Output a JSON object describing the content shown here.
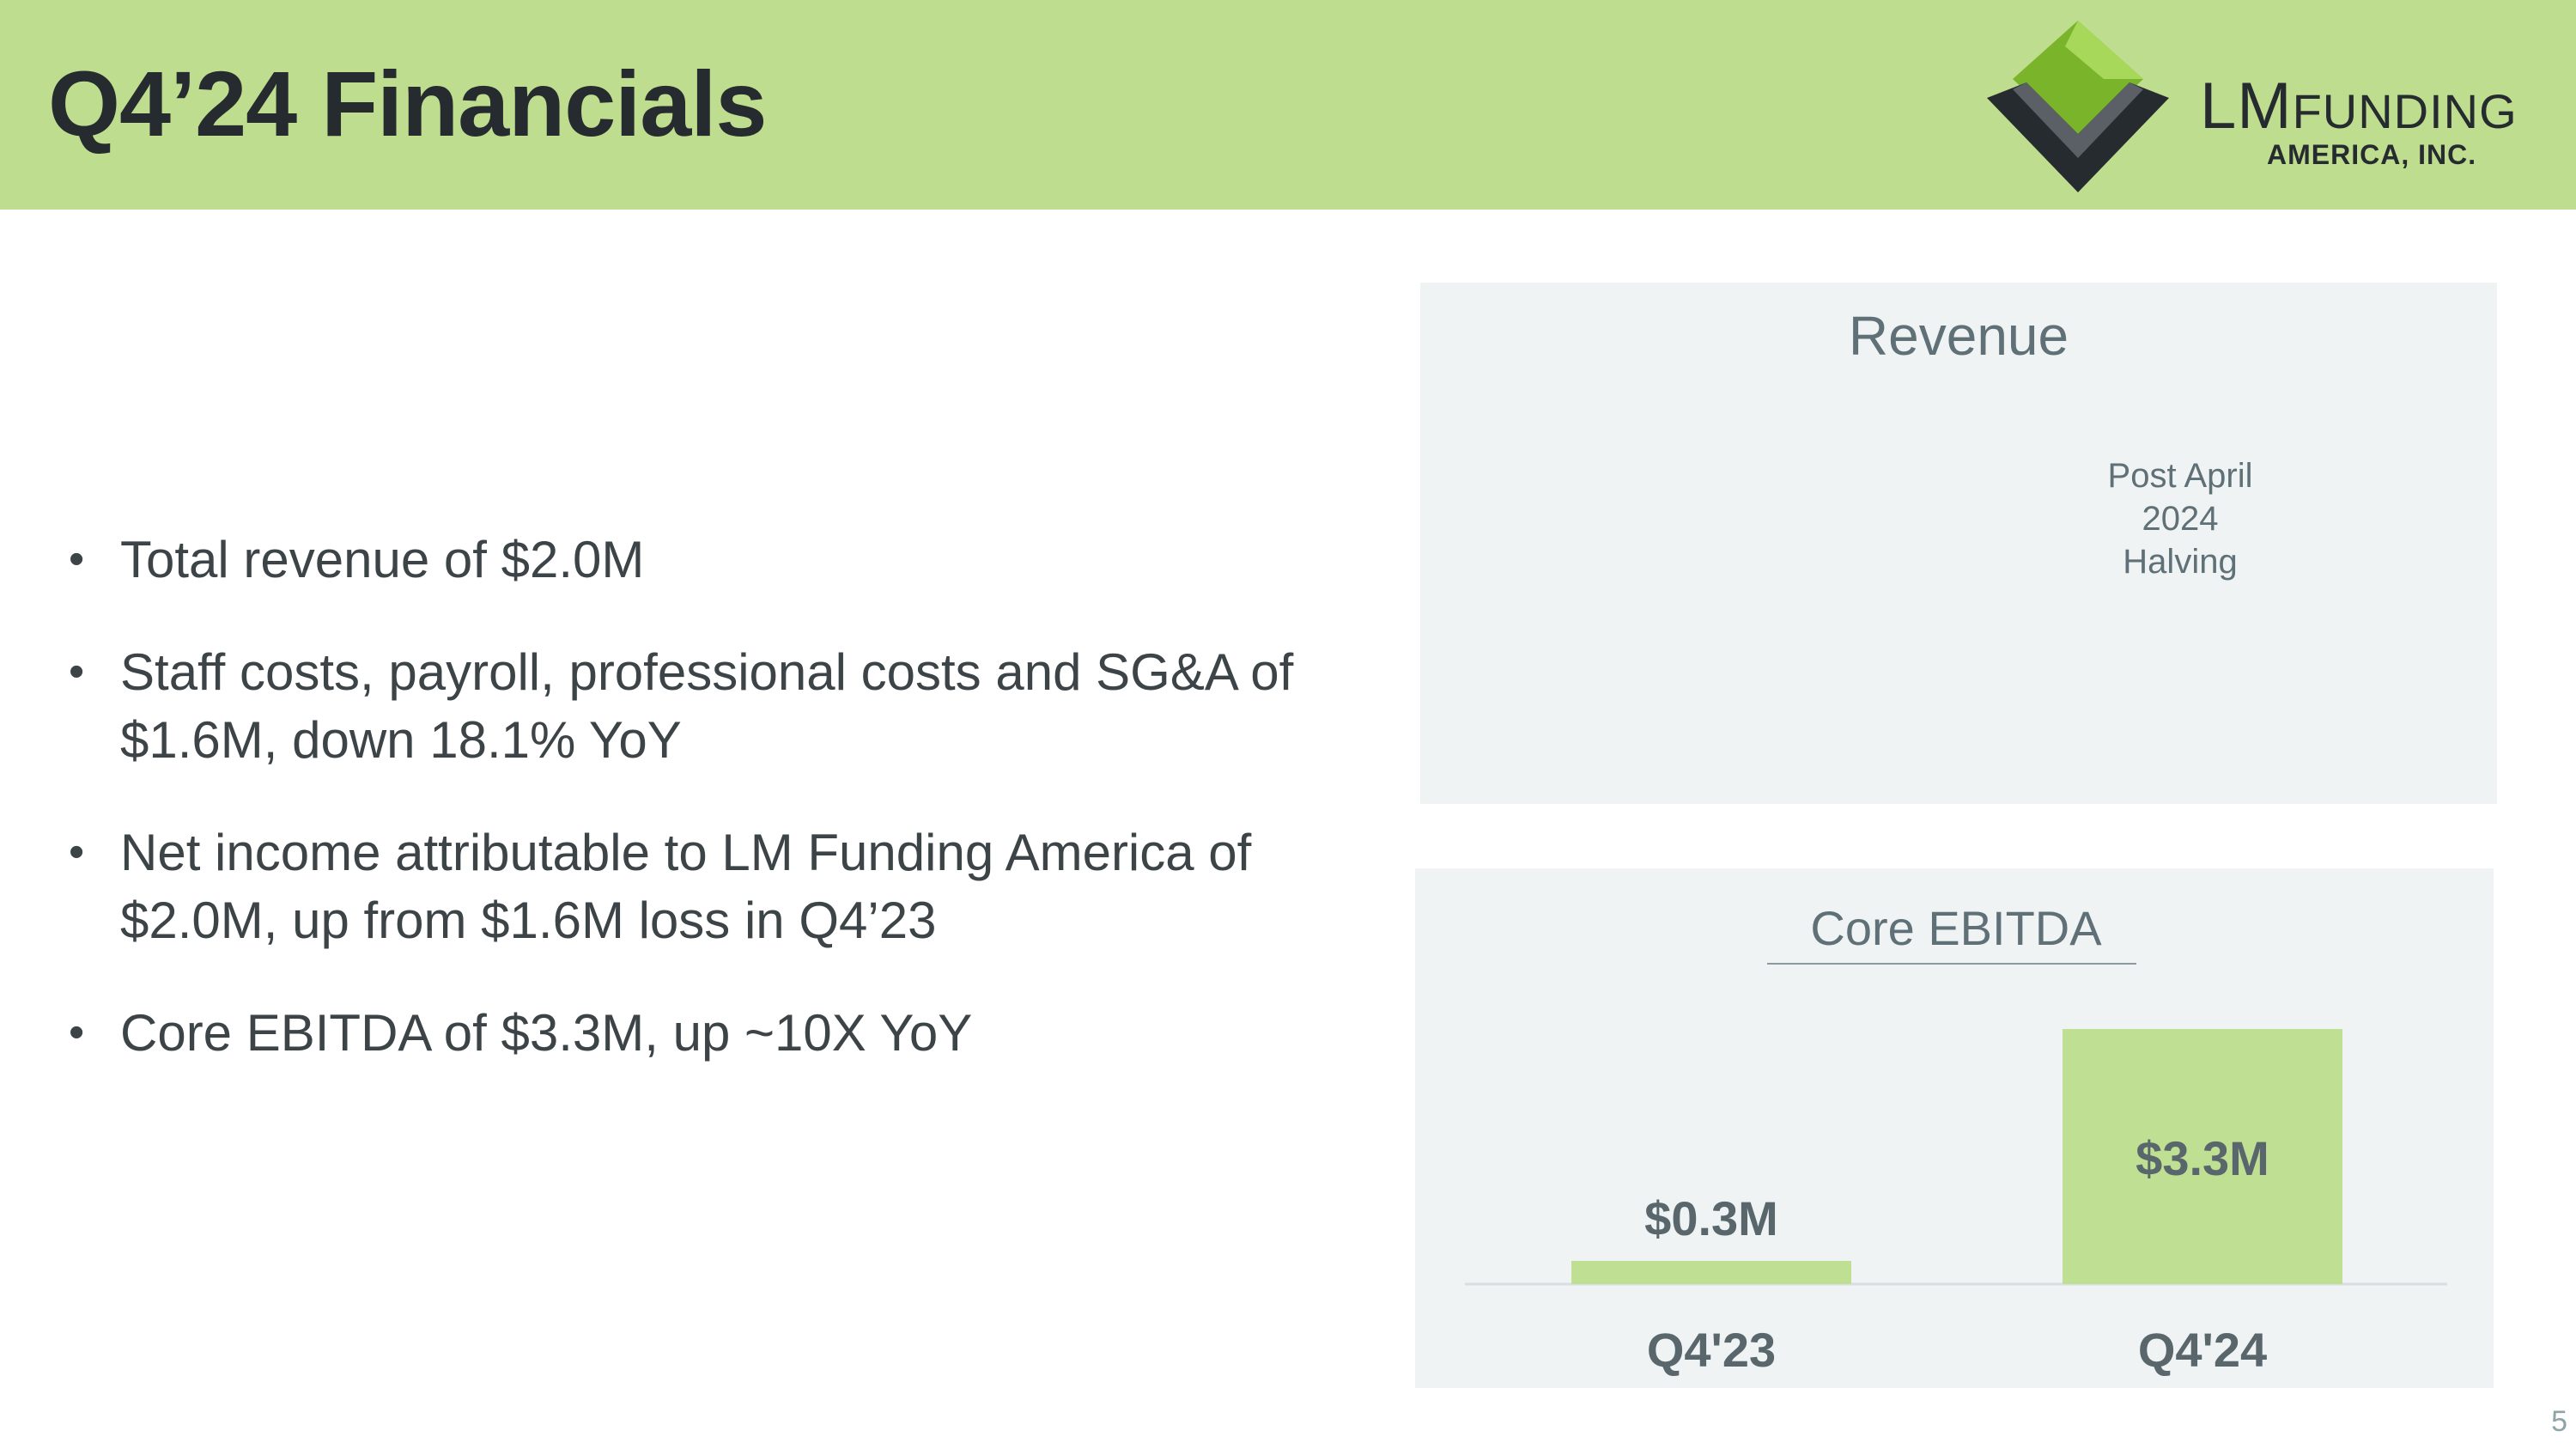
{
  "header": {
    "title": "Q4’24 Financials",
    "logo_text_main_big": "LM",
    "logo_text_main_small": "FUNDING",
    "logo_text_sub": "AMERICA, INC.",
    "accent_color": "#bfdd8e"
  },
  "bullets": [
    "Total revenue of $2.0M",
    "Staff costs, payroll, professional costs and SG&A of $1.6M, down 18.1% YoY",
    "Net income attributable to LM Funding America of $2.0M, up from $1.6M loss in Q4’23",
    "Core EBITDA of $3.3M, up ~10X YoY"
  ],
  "revenue_panel": {
    "title": "Revenue",
    "annotation": "Post April 2024 Halving"
  },
  "chart_data": {
    "type": "bar",
    "title": "Core EBITDA",
    "categories": [
      "Q4'23",
      "Q4'24"
    ],
    "values": [
      0.3,
      3.3
    ],
    "data_labels": [
      "$0.3M",
      "$3.3M"
    ],
    "ylim": [
      0,
      3.6
    ],
    "bar_color": "#bfdf92",
    "grid": false,
    "legend": "none"
  },
  "slide_number": "5"
}
